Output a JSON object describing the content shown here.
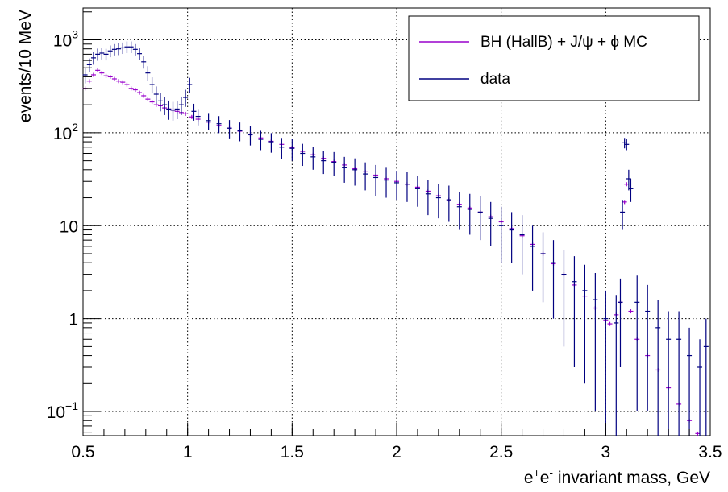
{
  "chart_data": {
    "type": "scatter",
    "xlabel": {
      "base1": "e",
      "sup1": "+",
      "base2": "e",
      "sup2": "-",
      "rest": " invariant mass, GeV"
    },
    "ylabel": "events/10 MeV",
    "xlim": [
      0.5,
      3.5
    ],
    "ylim": [
      0.055,
      2200
    ],
    "y_scale": "log",
    "grid": true,
    "grid_style": "dotted",
    "x_ticks": [
      {
        "value": 0.5,
        "label": "0.5"
      },
      {
        "value": 1.0,
        "label": "1"
      },
      {
        "value": 1.5,
        "label": "1.5"
      },
      {
        "value": 2.0,
        "label": "2"
      },
      {
        "value": 2.5,
        "label": "2.5"
      },
      {
        "value": 3.0,
        "label": "3"
      },
      {
        "value": 3.5,
        "label": "3.5"
      }
    ],
    "y_ticks": [
      {
        "value": 0.1,
        "base": "10",
        "sup": "−1"
      },
      {
        "value": 1,
        "base": "1",
        "sup": ""
      },
      {
        "value": 10,
        "base": "10",
        "sup": ""
      },
      {
        "value": 100,
        "base": "10",
        "sup": "2"
      },
      {
        "value": 1000,
        "base": "10",
        "sup": "3"
      }
    ],
    "legend": {
      "placement": "top-right",
      "entries": [
        {
          "label": "BH (HallB) + J/ψ + ϕ MC",
          "series": "mc"
        },
        {
          "label": "data",
          "series": "data"
        }
      ]
    },
    "series": [
      {
        "name": "BH (HallB) + J/ψ + ϕ MC",
        "key": "mc",
        "color": "#9900cc",
        "points": [
          [
            0.51,
            300
          ],
          [
            0.53,
            360
          ],
          [
            0.55,
            420
          ],
          [
            0.57,
            470
          ],
          [
            0.59,
            440
          ],
          [
            0.61,
            410
          ],
          [
            0.63,
            400
          ],
          [
            0.65,
            380
          ],
          [
            0.67,
            360
          ],
          [
            0.69,
            350
          ],
          [
            0.71,
            330
          ],
          [
            0.73,
            300
          ],
          [
            0.75,
            290
          ],
          [
            0.77,
            270
          ],
          [
            0.79,
            250
          ],
          [
            0.81,
            230
          ],
          [
            0.83,
            215
          ],
          [
            0.85,
            200
          ],
          [
            0.87,
            195
          ],
          [
            0.89,
            185
          ],
          [
            0.91,
            180
          ],
          [
            0.93,
            175
          ],
          [
            0.95,
            170
          ],
          [
            0.97,
            165
          ],
          [
            0.99,
            160
          ],
          [
            1.02,
            148
          ],
          [
            1.05,
            140
          ],
          [
            1.1,
            130
          ],
          [
            1.15,
            120
          ],
          [
            1.2,
            112
          ],
          [
            1.25,
            104
          ],
          [
            1.3,
            96
          ],
          [
            1.35,
            88
          ],
          [
            1.4,
            81
          ],
          [
            1.45,
            75
          ],
          [
            1.5,
            69
          ],
          [
            1.55,
            63
          ],
          [
            1.6,
            58
          ],
          [
            1.65,
            53
          ],
          [
            1.7,
            49
          ],
          [
            1.75,
            45
          ],
          [
            1.8,
            41
          ],
          [
            1.85,
            38
          ],
          [
            1.9,
            35
          ],
          [
            1.95,
            32
          ],
          [
            2.0,
            30
          ],
          [
            2.05,
            28
          ],
          [
            2.1,
            26
          ],
          [
            2.15,
            23.5
          ],
          [
            2.2,
            21
          ],
          [
            2.25,
            19
          ],
          [
            2.3,
            17
          ],
          [
            2.35,
            15.5
          ],
          [
            2.4,
            14
          ],
          [
            2.45,
            12.5
          ],
          [
            2.5,
            11
          ],
          [
            2.55,
            9.3
          ],
          [
            2.6,
            7.8
          ],
          [
            2.65,
            6.3
          ],
          [
            2.7,
            5.0
          ],
          [
            2.75,
            3.9
          ],
          [
            2.8,
            3.0
          ],
          [
            2.85,
            2.3
          ],
          [
            2.9,
            1.75
          ],
          [
            2.95,
            1.3
          ],
          [
            3.0,
            0.95
          ],
          [
            3.02,
            0.88
          ],
          [
            3.05,
            1.1
          ],
          [
            3.07,
            1.5
          ],
          [
            3.09,
            18
          ],
          [
            3.1,
            28
          ],
          [
            3.12,
            1.2
          ],
          [
            3.15,
            0.6
          ],
          [
            3.2,
            0.4
          ],
          [
            3.25,
            0.28
          ],
          [
            3.3,
            0.18
          ],
          [
            3.35,
            0.12
          ],
          [
            3.4,
            0.08
          ],
          [
            3.44,
            0.058
          ]
        ]
      },
      {
        "name": "data",
        "key": "data",
        "color": "#000080",
        "points": [
          [
            0.51,
            420,
            80
          ],
          [
            0.53,
            540,
            90
          ],
          [
            0.55,
            640,
            100
          ],
          [
            0.57,
            700,
            105
          ],
          [
            0.59,
            720,
            105
          ],
          [
            0.61,
            700,
            100
          ],
          [
            0.63,
            760,
            110
          ],
          [
            0.65,
            790,
            110
          ],
          [
            0.67,
            800,
            115
          ],
          [
            0.69,
            820,
            115
          ],
          [
            0.71,
            840,
            120
          ],
          [
            0.73,
            840,
            120
          ],
          [
            0.75,
            790,
            110
          ],
          [
            0.77,
            710,
            100
          ],
          [
            0.79,
            580,
            90
          ],
          [
            0.81,
            440,
            80
          ],
          [
            0.83,
            330,
            65
          ],
          [
            0.85,
            260,
            55
          ],
          [
            0.87,
            220,
            50
          ],
          [
            0.89,
            200,
            45
          ],
          [
            0.91,
            180,
            42
          ],
          [
            0.93,
            175,
            40
          ],
          [
            0.95,
            180,
            40
          ],
          [
            0.97,
            200,
            45
          ],
          [
            0.99,
            240,
            50
          ],
          [
            1.01,
            330,
            60
          ],
          [
            1.03,
            170,
            35
          ],
          [
            1.05,
            150,
            30
          ],
          [
            1.1,
            135,
            28
          ],
          [
            1.15,
            125,
            26
          ],
          [
            1.2,
            112,
            25
          ],
          [
            1.25,
            105,
            24
          ],
          [
            1.3,
            95,
            22
          ],
          [
            1.35,
            85,
            20
          ],
          [
            1.4,
            80,
            19
          ],
          [
            1.45,
            70,
            18
          ],
          [
            1.5,
            68,
            18
          ],
          [
            1.55,
            60,
            16
          ],
          [
            1.6,
            55,
            15
          ],
          [
            1.65,
            50,
            14
          ],
          [
            1.7,
            48,
            14
          ],
          [
            1.75,
            42,
            13
          ],
          [
            1.8,
            40,
            13
          ],
          [
            1.85,
            36,
            12
          ],
          [
            1.9,
            33,
            12
          ],
          [
            1.95,
            31,
            11
          ],
          [
            2.0,
            29,
            10
          ],
          [
            2.05,
            28,
            10
          ],
          [
            2.1,
            25,
            9
          ],
          [
            2.15,
            22,
            9
          ],
          [
            2.2,
            20,
            8
          ],
          [
            2.25,
            19,
            8
          ],
          [
            2.3,
            16,
            7
          ],
          [
            2.35,
            15,
            7
          ],
          [
            2.4,
            14,
            7
          ],
          [
            2.45,
            12,
            6
          ],
          [
            2.5,
            10,
            6
          ],
          [
            2.55,
            9,
            5
          ],
          [
            2.6,
            8,
            5
          ],
          [
            2.65,
            6,
            4
          ],
          [
            2.7,
            5,
            3.5
          ],
          [
            2.75,
            4,
            3
          ],
          [
            2.8,
            3,
            2.5
          ],
          [
            2.85,
            2.5,
            2.2
          ],
          [
            2.9,
            2,
            1.8
          ],
          [
            2.95,
            1.6,
            1.5
          ],
          [
            3.0,
            1.0,
            1.0
          ],
          [
            3.05,
            0.9,
            0.9
          ],
          [
            3.07,
            1.5,
            1.2
          ],
          [
            3.08,
            14,
            5
          ],
          [
            3.09,
            78,
            10
          ],
          [
            3.1,
            75,
            10
          ],
          [
            3.11,
            32,
            8
          ],
          [
            3.12,
            25,
            7
          ],
          [
            3.15,
            1.5,
            1.4
          ],
          [
            3.2,
            1.2,
            1.1
          ],
          [
            3.25,
            0.8,
            0.8
          ],
          [
            3.3,
            0.6,
            0.6
          ],
          [
            3.35,
            0.6,
            0.6
          ],
          [
            3.4,
            0.4,
            0.4
          ],
          [
            3.45,
            0.3,
            0.3
          ],
          [
            3.48,
            0.5,
            0.5
          ]
        ]
      }
    ]
  }
}
